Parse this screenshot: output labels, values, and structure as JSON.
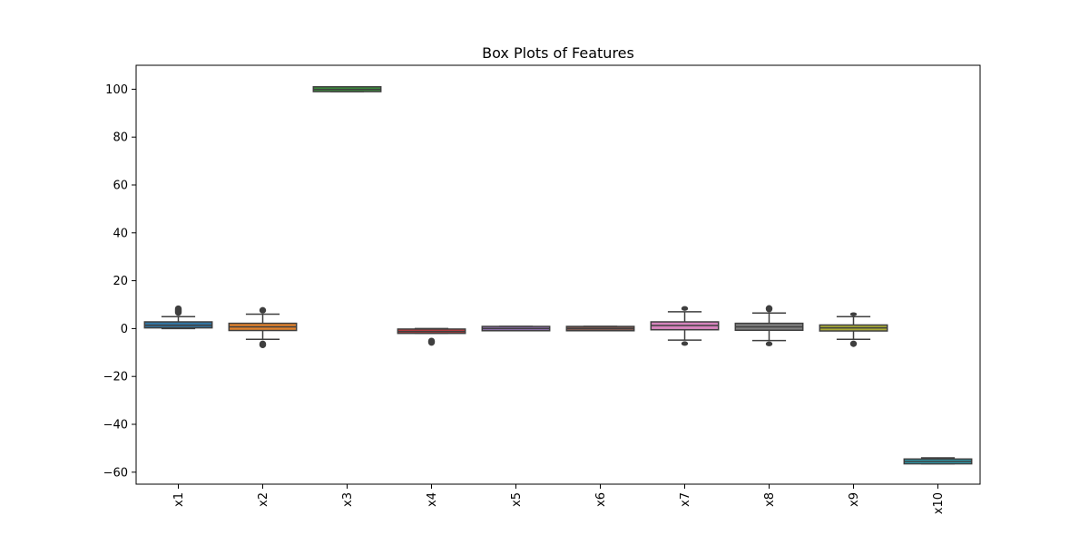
{
  "chart_data": {
    "type": "box",
    "title": "Box Plots of Features",
    "xlabel": "",
    "ylabel": "",
    "ylim": [
      -65,
      110
    ],
    "yticks": [
      -60,
      -40,
      -20,
      0,
      20,
      40,
      60,
      80,
      100
    ],
    "grid": false,
    "categories": [
      "x1",
      "x2",
      "x3",
      "x4",
      "x5",
      "x6",
      "x7",
      "x8",
      "x9",
      "x10"
    ],
    "boxes": [
      {
        "label": "x1",
        "color": "#3274a1",
        "whislo": 0.0,
        "q1": 0.3,
        "median": 1.4,
        "q3": 2.8,
        "whishi": 5.0,
        "fliers_lo": [],
        "fliers_hi": [
          5.5,
          9.5
        ]
      },
      {
        "label": "x2",
        "color": "#e1812c",
        "whislo": -4.5,
        "q1": -0.8,
        "median": 0.7,
        "q3": 2.2,
        "whishi": 6.0,
        "fliers_lo": [
          -8.0,
          -5.2
        ],
        "fliers_hi": [
          6.5,
          8.8
        ]
      },
      {
        "label": "x3",
        "color": "#3a923a",
        "whislo": 99.0,
        "q1": 99.0,
        "median": 99.9,
        "q3": 101.0,
        "whishi": 101.0,
        "fliers_lo": [],
        "fliers_hi": []
      },
      {
        "label": "x4",
        "color": "#c03d3e",
        "whislo": -2.0,
        "q1": -2.0,
        "median": -1.2,
        "q3": -0.2,
        "whishi": 0.0,
        "fliers_lo": [
          -7.0,
          -4.0
        ],
        "fliers_hi": []
      },
      {
        "label": "x5",
        "color": "#9372b2",
        "whislo": -0.9,
        "q1": -0.9,
        "median": 0.0,
        "q3": 0.9,
        "whishi": 0.9,
        "fliers_lo": [],
        "fliers_hi": []
      },
      {
        "label": "x6",
        "color": "#845b53",
        "whislo": -0.9,
        "q1": -0.9,
        "median": 0.0,
        "q3": 0.9,
        "whishi": 0.9,
        "fliers_lo": [],
        "fliers_hi": []
      },
      {
        "label": "x7",
        "color": "#d684bd",
        "whislo": -4.8,
        "q1": -0.5,
        "median": 1.3,
        "q3": 2.8,
        "whishi": 7.0,
        "fliers_lo": [
          -7.0,
          -5.5
        ],
        "fliers_hi": [
          7.6,
          9.2
        ]
      },
      {
        "label": "x8",
        "color": "#7f7f7f",
        "whislo": -5.0,
        "q1": -0.7,
        "median": 0.7,
        "q3": 2.2,
        "whishi": 6.5,
        "fliers_lo": [
          -7.2,
          -5.6
        ],
        "fliers_hi": [
          7.0,
          9.6
        ]
      },
      {
        "label": "x9",
        "color": "#a9aa35",
        "whislo": -4.5,
        "q1": -1.0,
        "median": 0.3,
        "q3": 1.5,
        "whishi": 5.0,
        "fliers_lo": [
          -7.5,
          -5.2
        ],
        "fliers_hi": [
          5.6,
          6.6
        ]
      },
      {
        "label": "x10",
        "color": "#2ea2b3",
        "whislo": -56.5,
        "q1": -56.5,
        "median": -55.5,
        "q3": -54.5,
        "whishi": -54.0,
        "fliers_lo": [],
        "fliers_hi": []
      }
    ]
  }
}
